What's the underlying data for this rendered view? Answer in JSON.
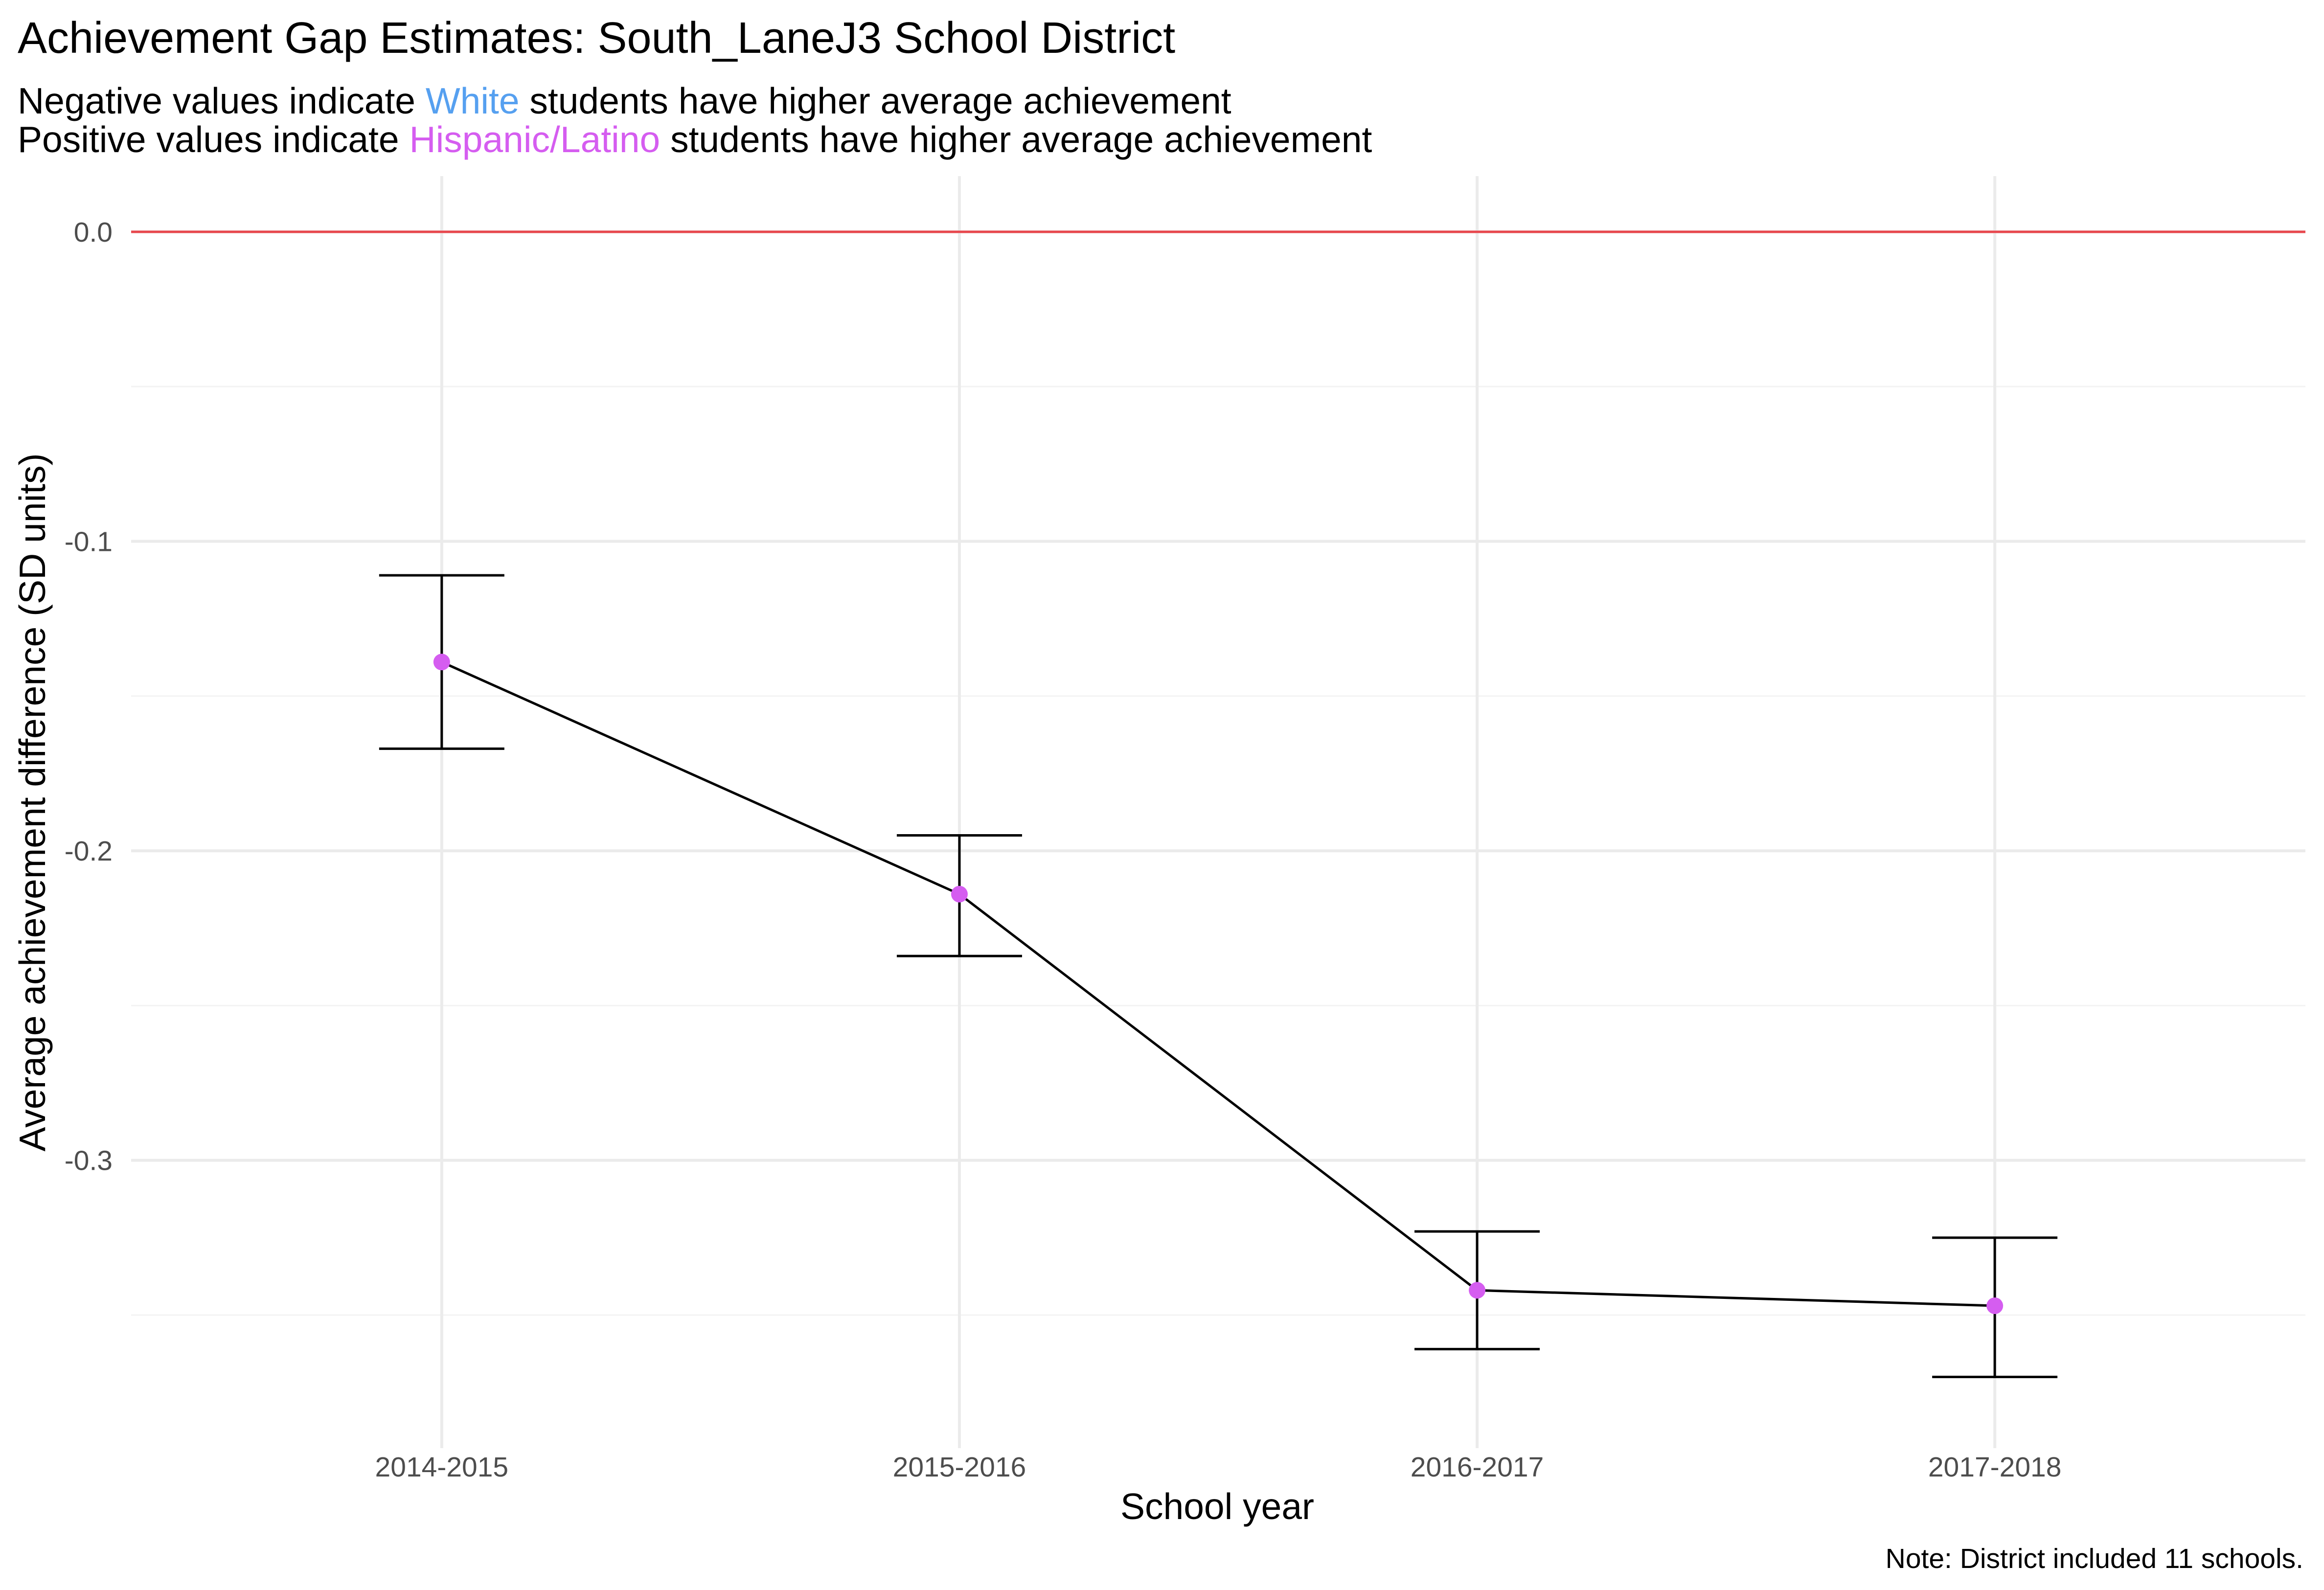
{
  "chart_data": {
    "type": "line",
    "title": "Achievement Gap Estimates: South_LaneJ3 School District",
    "subtitle": {
      "line1": {
        "before": "Negative values indicate ",
        "highlight": "White",
        "after": " students have higher average achievement"
      },
      "line2": {
        "before": "Positive values indicate ",
        "highlight": "Hispanic/Latino",
        "after": " students have higher average achievement"
      }
    },
    "xlabel": "School year",
    "ylabel": "Average achievement difference (SD units)",
    "caption": "Note: District included 11 schools.",
    "categories": [
      "2014-2015",
      "2015-2016",
      "2016-2017",
      "2017-2018"
    ],
    "series": [
      {
        "values": [
          -0.139,
          -0.214,
          -0.342,
          -0.347
        ],
        "lower": [
          -0.167,
          -0.234,
          -0.361,
          -0.37
        ],
        "upper": [
          -0.111,
          -0.195,
          -0.323,
          -0.325
        ]
      }
    ],
    "reference_line": 0.0,
    "ylim": [
      -0.393,
      0.018
    ],
    "yticks": [
      0.0,
      -0.1,
      -0.2,
      -0.3
    ],
    "ytick_labels": [
      "0.0",
      "-0.1",
      "-0.2",
      "-0.3"
    ],
    "grid": true,
    "legend": "none",
    "colors": {
      "white_group": "#56a0f0",
      "hispanic_group": "#d55df0",
      "point": "#d55df0",
      "line": "#000000",
      "errorbar": "#000000",
      "reference_line": "#e8474d",
      "grid_major": "#ebebeb",
      "grid_minor": "#f3f3f3",
      "tick_label": "#4d4d4d"
    }
  }
}
